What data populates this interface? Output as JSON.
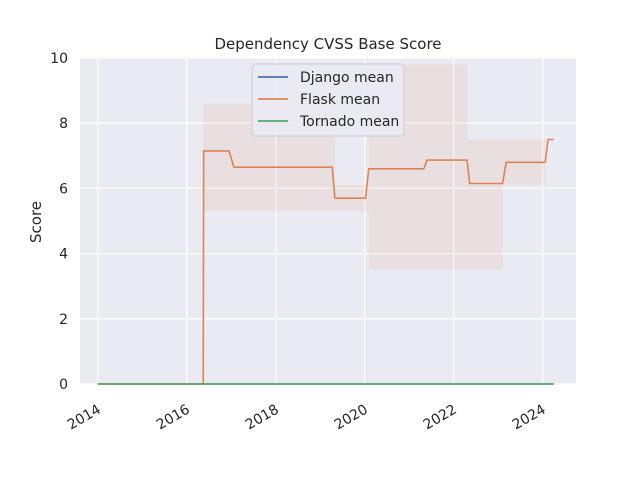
{
  "chart_data": {
    "type": "line",
    "title": "Dependency CVSS Base Score",
    "xlabel": "",
    "ylabel": "Score",
    "xlim": [
      2013.6,
      2024.75
    ],
    "ylim": [
      0,
      10
    ],
    "x_ticks": [
      2014,
      2016,
      2018,
      2020,
      2022,
      2024
    ],
    "y_ticks": [
      0,
      2,
      4,
      6,
      8,
      10
    ],
    "grid": true,
    "legend_placement": "top-center",
    "series": [
      {
        "name": "Django mean",
        "color": "#4c72b0",
        "x": [
          2014.0,
          2024.25
        ],
        "y": [
          0,
          0
        ]
      },
      {
        "name": "Flask mean",
        "color": "#dd8452",
        "x": [
          2014.0,
          2016.3,
          2016.37,
          2016.38,
          2016.95,
          2017.06,
          2019.27,
          2019.33,
          2020.02,
          2020.09,
          2021.33,
          2021.4,
          2022.3,
          2022.36,
          2023.1,
          2023.18,
          2024.06,
          2024.12,
          2024.25
        ],
        "y": [
          0,
          0,
          0,
          7.15,
          7.15,
          6.65,
          6.65,
          5.7,
          5.7,
          6.6,
          6.6,
          6.87,
          6.87,
          6.15,
          6.15,
          6.8,
          6.8,
          7.5,
          7.5
        ],
        "band": [
          {
            "x0": 2016.37,
            "x1": 2019.33,
            "lo": 5.3,
            "hi": 8.6
          },
          {
            "x0": 2019.33,
            "x1": 2020.09,
            "lo": 5.3,
            "hi": 6.1
          },
          {
            "x0": 2020.09,
            "x1": 2022.3,
            "lo": 3.5,
            "hi": 9.8
          },
          {
            "x0": 2022.3,
            "x1": 2023.1,
            "lo": 3.5,
            "hi": 7.5
          },
          {
            "x0": 2023.1,
            "x1": 2024.06,
            "lo": 6.1,
            "hi": 7.5
          }
        ]
      },
      {
        "name": "Tornado mean",
        "color": "#55a868",
        "x": [
          2014.0,
          2024.25
        ],
        "y": [
          0,
          0
        ]
      }
    ]
  }
}
